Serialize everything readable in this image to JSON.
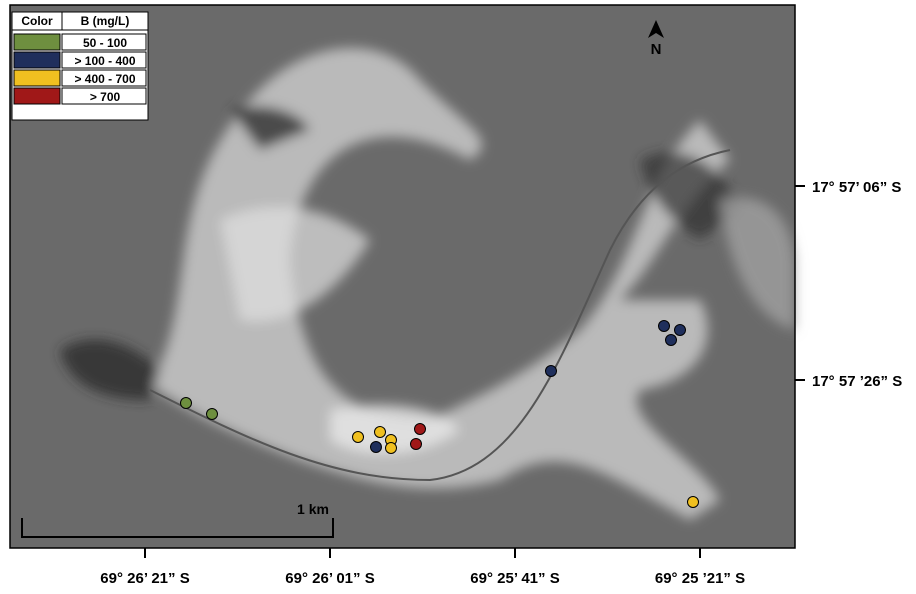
{
  "legend": {
    "headers": [
      "Color",
      "B (mg/L)"
    ],
    "rows": [
      {
        "color": "#6e8f3f",
        "label": "50 - 100"
      },
      {
        "color": "#1f2f5c",
        "label": "> 100 - 400"
      },
      {
        "color": "#f0c020",
        "label": "> 400 - 700"
      },
      {
        "color": "#a01818",
        "label": "> 700"
      }
    ]
  },
  "north": "N",
  "scale_bar": "1 km",
  "latitude_labels": [
    "17° 57’ 06” S",
    "17° 57 ’26” S"
  ],
  "longitude_labels": [
    "69° 26’ 21” S",
    "69° 26’ 01” S",
    "69° 25’ 41” S",
    "69° 25 ’21” S"
  ]
}
